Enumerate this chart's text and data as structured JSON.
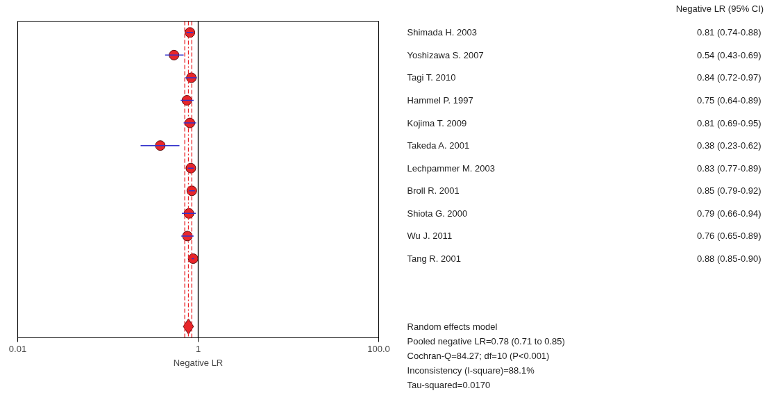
{
  "chart_data": {
    "type": "scatter",
    "orientation": "horizontal",
    "title": "Negative LR (95% CI)",
    "xlabel": "Negative LR",
    "log": "x",
    "xlim": [
      0.01,
      100
    ],
    "xticks": [
      0.01,
      1,
      {
        "value": 100,
        "label": "100.0"
      }
    ],
    "grid": false,
    "categories": [
      "Shimada H. 2003",
      "Yoshizawa S. 2007",
      "Tagi T. 2010",
      "Hammel P. 1997",
      "Kojima T. 2009",
      "Takeda A. 2001",
      "Lechpammer M. 2003",
      "Broll R. 2001",
      "Shiota G. 2000",
      "Wu J. 2011",
      "Tang R. 2001",
      null,
      null,
      "Random effects model"
    ],
    "series": [
      {
        "color": "#e8262a",
        "marker": "circle",
        "values": [
          0.81,
          0.54,
          0.84,
          0.75,
          0.81,
          0.38,
          0.83,
          0.85,
          0.79,
          0.76,
          0.88,
          null,
          null,
          null
        ],
        "errors": [
          [
            0.74,
            0.88
          ],
          [
            0.43,
            0.69
          ],
          [
            0.72,
            0.97
          ],
          [
            0.64,
            0.89
          ],
          [
            0.69,
            0.95
          ],
          [
            0.23,
            0.62
          ],
          [
            0.77,
            0.89
          ],
          [
            0.79,
            0.92
          ],
          [
            0.66,
            0.94
          ],
          [
            0.65,
            0.89
          ],
          [
            0.85,
            0.9
          ],
          null,
          null,
          null
        ],
        "value_labels": [
          "0.81  (0.74-0.88)",
          "0.54  (0.43-0.69)",
          "0.84  (0.72-0.97)",
          "0.75  (0.64-0.89)",
          "0.81  (0.69-0.95)",
          "0.38  (0.23-0.62)",
          "0.83  (0.77-0.89)",
          "0.85  (0.79-0.92)",
          "0.79  (0.66-0.94)",
          "0.76  (0.65-0.89)",
          "0.88  (0.85-0.90)",
          null,
          null,
          null
        ]
      },
      {
        "color": "#e8262a",
        "marker": "diamond",
        "values": [
          null,
          null,
          null,
          null,
          null,
          null,
          null,
          null,
          null,
          null,
          null,
          null,
          null,
          0.78
        ],
        "errors": [
          null,
          null,
          null,
          null,
          null,
          null,
          null,
          null,
          null,
          null,
          null,
          null,
          null,
          [
            0.71,
            0.85
          ]
        ]
      }
    ],
    "ref_lines": [
      {
        "axis": "x",
        "value": 1,
        "color": "#000000",
        "line_style": "solid"
      },
      {
        "axis": "x",
        "value": 0.78,
        "color": "#e8262a",
        "line_style": "dashdot"
      },
      {
        "axis": "x",
        "value": 0.71,
        "color": "#e8262a",
        "line_style": "dashed"
      },
      {
        "axis": "x",
        "value": 0.85,
        "color": "#e8262a",
        "line_style": "dashed"
      }
    ],
    "annotations": [
      "Pooled negative LR=0.78 (0.71 to 0.85)",
      "Cochran-Q=84.27; df=10 (P<0.001)",
      "Inconsistency (I-square)=88.1%",
      "Tau-squared=0.0170"
    ]
  }
}
